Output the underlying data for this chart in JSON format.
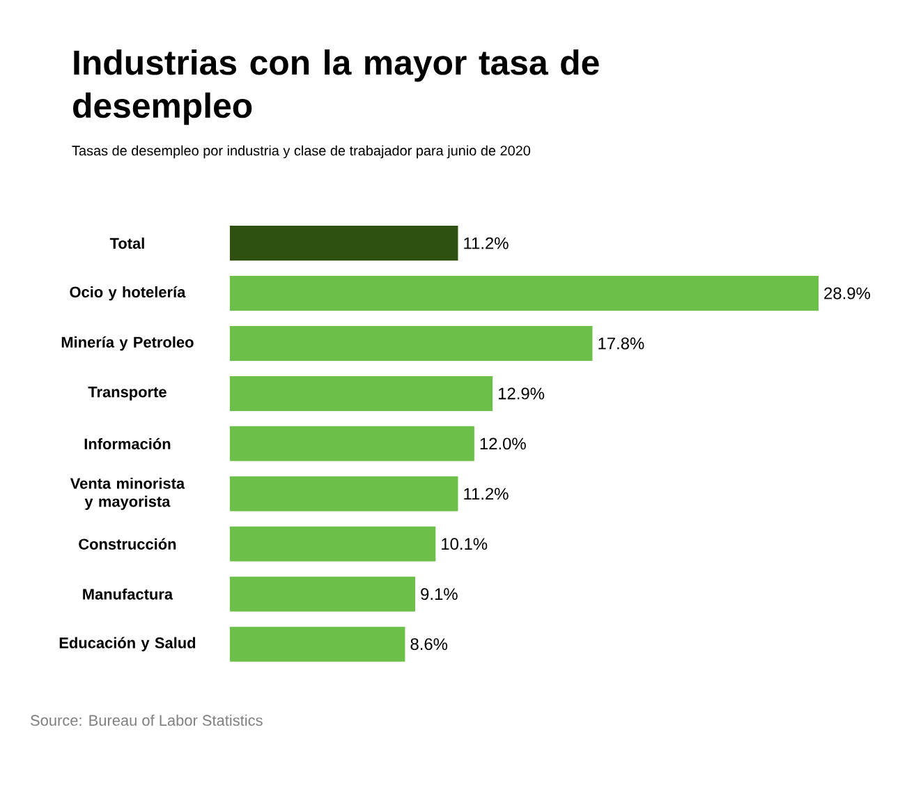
{
  "chart_data": {
    "type": "bar",
    "orientation": "horizontal",
    "title": "Industrias con la mayor tasa de desempleo",
    "subtitle": "Tasas de desempleo por industria y clase de trabajador para junio de 2020",
    "categories": [
      "Total",
      "Ocio y hotelería",
      "Minería y Petroleo",
      "Transporte",
      "Información",
      "Venta minorista y mayorista",
      "Construcción",
      "Manufactura",
      "Educación y Salud"
    ],
    "values": [
      11.2,
      28.9,
      17.8,
      12.9,
      12.0,
      11.2,
      10.1,
      9.1,
      8.6
    ],
    "value_labels": [
      "11.2%",
      "28.9%",
      "17.8%",
      "12.9%",
      "12.0%",
      "11.2%",
      "10.1%",
      "9.1%",
      "8.6%"
    ],
    "colors": [
      "#2e5010",
      "#6cc04a",
      "#6cc04a",
      "#6cc04a",
      "#6cc04a",
      "#6cc04a",
      "#6cc04a",
      "#6cc04a",
      "#6cc04a"
    ],
    "annotations": [
      "Source: Bureau of Labor Statistics"
    ]
  }
}
